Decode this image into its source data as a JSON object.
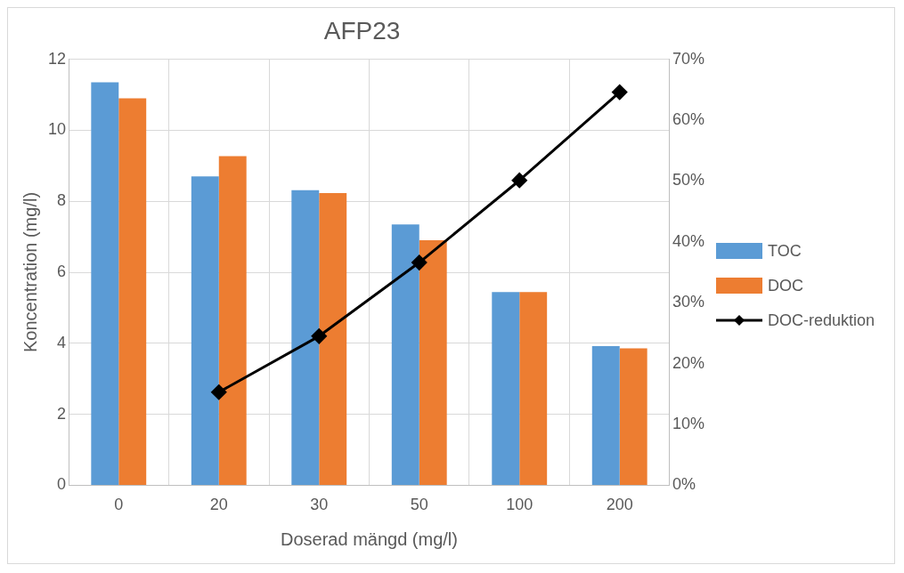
{
  "chart_data": {
    "type": "bar",
    "title": "AFP23",
    "xlabel": "Doserad mängd (mg/l)",
    "ylabel": "Koncentration (mg/l)",
    "categories": [
      "0",
      "20",
      "30",
      "50",
      "100",
      "200"
    ],
    "series": [
      {
        "name": "TOC",
        "color": "#5b9bd5",
        "values": [
          11.35,
          8.7,
          8.31,
          7.35,
          5.44,
          3.92
        ]
      },
      {
        "name": "DOC",
        "color": "#ed7d31",
        "values": [
          10.9,
          9.27,
          8.23,
          6.9,
          5.44,
          3.86
        ]
      },
      {
        "name": "DOC-reduktion",
        "type": "line",
        "axis": "y2",
        "color": "#000000",
        "marker": "diamond",
        "values": [
          null,
          15.3,
          24.5,
          36.6,
          50.1,
          64.6
        ]
      }
    ],
    "ylim": [
      0,
      12
    ],
    "yticks": [
      0,
      2,
      4,
      6,
      8,
      10,
      12
    ],
    "y2lim": [
      0,
      70
    ],
    "y2ticks": [
      {
        "value": 0,
        "label": "0%"
      },
      {
        "value": 10,
        "label": "10%"
      },
      {
        "value": 20,
        "label": "20%"
      },
      {
        "value": 30,
        "label": "30%"
      },
      {
        "value": 40,
        "label": "40%"
      },
      {
        "value": 50,
        "label": "50%"
      },
      {
        "value": 60,
        "label": "60%"
      },
      {
        "value": 70,
        "label": "70%"
      }
    ],
    "grid": true,
    "legend": "right"
  }
}
